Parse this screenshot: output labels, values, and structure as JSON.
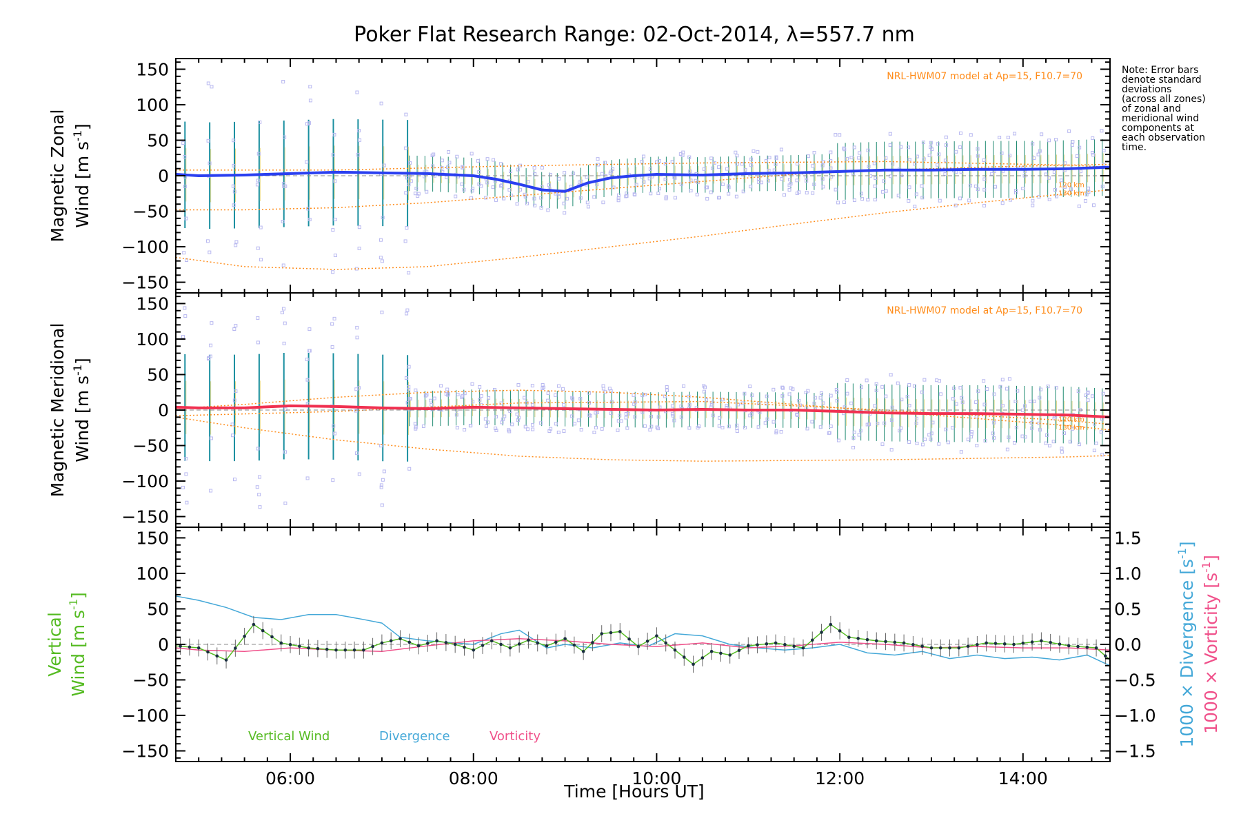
{
  "chart_data": {
    "type": "line",
    "title": "Poker Flat Research Range: 02-Oct-2014, λ=557.7 nm",
    "xlabel": "Time [Hours UT]",
    "xlim": [
      4.75,
      14.95
    ],
    "x_ticks": [
      "06:00",
      "08:00",
      "10:00",
      "12:00",
      "14:00"
    ],
    "note": [
      "Note: Error bars",
      "denote standard",
      "deviations",
      "(across all zones)",
      "of zonal and",
      "meridional wind",
      "components at",
      "each observation",
      "time."
    ],
    "colors": {
      "zonal": "#2a3ff0",
      "zonal_light": "#4a90e0",
      "meridional": "#f03050",
      "model": "#ff8c1a",
      "scatter": "#b8b8f0",
      "vertical": "#55bb22",
      "divergence": "#44a8d8",
      "vorticity": "#f0508a",
      "errorbar": "#8899cc"
    },
    "panels": [
      {
        "ylabel_line1": "Magnetic Zonal",
        "ylabel_line2": "Wind",
        "ylabel_unit": "[m s",
        "ylabel_exp": "-1",
        "ylabel_close": "]",
        "ylim": [
          -165,
          165
        ],
        "y_ticks": [
          "150",
          "100",
          "50",
          "0",
          "−50",
          "−100",
          "−150"
        ],
        "model_label": "NRL-HWM07 model at Ap=15, F10.7=70",
        "alt_labels": [
          "120 km",
          "130 km"
        ],
        "series": {
          "x": [
            4.75,
            5.0,
            5.5,
            6.0,
            6.5,
            7.0,
            7.5,
            8.0,
            8.25,
            8.5,
            8.75,
            9.0,
            9.25,
            9.5,
            9.75,
            10.0,
            10.5,
            11.0,
            11.5,
            12.0,
            12.5,
            13.0,
            13.5,
            14.0,
            14.5,
            14.95
          ],
          "values": [
            2,
            0,
            1,
            3,
            5,
            4,
            3,
            0,
            -5,
            -12,
            -20,
            -22,
            -10,
            -3,
            0,
            2,
            1,
            3,
            4,
            6,
            8,
            8,
            9,
            9,
            10,
            12
          ]
        },
        "model_curves": [
          {
            "x": [
              4.75,
              5.5,
              6.5,
              7.5,
              8.5,
              9.5,
              10.5,
              11.5,
              12.5,
              13.5,
              14.5,
              14.95
            ],
            "values": [
              -48,
              -48,
              -45,
              -38,
              -28,
              -18,
              -8,
              2,
              8,
              12,
              15,
              16
            ]
          },
          {
            "x": [
              4.75,
              5.5,
              6.5,
              7.5,
              8.5,
              9.5,
              10.5,
              11.5,
              12.5,
              13.5,
              14.5,
              14.95
            ],
            "values": [
              -115,
              -128,
              -132,
              -128,
              -115,
              -100,
              -85,
              -68,
              -52,
              -38,
              -25,
              -20
            ]
          },
          {
            "x": [
              4.75,
              6.5,
              8.5,
              10.5,
              12.5,
              14.5,
              14.95
            ],
            "values": [
              8,
              8,
              14,
              18,
              20,
              15,
              12
            ]
          }
        ]
      },
      {
        "ylabel_line1": "Magnetic Meridional",
        "ylabel_line2": "Wind",
        "ylabel_unit": "[m s",
        "ylabel_exp": "-1",
        "ylabel_close": "]",
        "ylim": [
          -165,
          165
        ],
        "y_ticks": [
          "150",
          "100",
          "50",
          "0",
          "−50",
          "−100",
          "−150"
        ],
        "model_label": "NRL-HWM07 model at Ap=15, F10.7=70",
        "alt_labels": [
          "120 km",
          "130 km"
        ],
        "series": {
          "x": [
            4.75,
            5.0,
            5.5,
            6.0,
            6.5,
            7.0,
            7.5,
            8.0,
            8.5,
            9.0,
            9.5,
            10.0,
            10.5,
            11.0,
            11.5,
            12.0,
            12.5,
            13.0,
            13.5,
            14.0,
            14.5,
            14.95
          ],
          "values": [
            4,
            3,
            3,
            6,
            5,
            3,
            2,
            4,
            3,
            2,
            1,
            0,
            1,
            0,
            0,
            -2,
            -4,
            -5,
            -5,
            -6,
            -7,
            -10
          ]
        },
        "model_curves": [
          {
            "x": [
              4.75,
              5.5,
              6.5,
              7.5,
              8.5,
              9.5,
              10.5,
              11.5,
              12.5,
              13.5,
              14.5,
              14.95
            ],
            "values": [
              -10,
              -25,
              -42,
              -55,
              -65,
              -70,
              -72,
              -71,
              -70,
              -68,
              -66,
              -64
            ]
          },
          {
            "x": [
              4.75,
              5.5,
              6.5,
              7.5,
              8.5,
              9.5,
              10.5,
              11.5,
              12.5,
              13.5,
              14.5,
              14.95
            ],
            "values": [
              2,
              8,
              18,
              25,
              28,
              25,
              18,
              8,
              -2,
              -12,
              -22,
              -28
            ]
          },
          {
            "x": [
              4.75,
              6.5,
              8.5,
              10.5,
              12.5,
              14.5,
              14.95
            ],
            "values": [
              -8,
              -2,
              10,
              12,
              0,
              -15,
              -20
            ]
          }
        ]
      },
      {
        "ylabel_line1": "Vertical",
        "ylabel_line2": "Wind",
        "ylabel_unit": "[m s",
        "ylabel_exp": "-1",
        "ylabel_close": "]",
        "ylim": [
          -165,
          165
        ],
        "y_ticks": [
          "150",
          "100",
          "50",
          "0",
          "−50",
          "−100",
          "−150"
        ],
        "y2lim": [
          -1.65,
          1.65
        ],
        "y2_ticks": [
          "1.5",
          "1.0",
          "0.5",
          "0.0",
          "−0.5",
          "−1.0",
          "−1.5"
        ],
        "y2label_div_prefix": "1000 × Divergence",
        "y2label_vor_prefix": "1000 × Vorticity",
        "y2label_unit": "[s",
        "y2label_exp": "-1",
        "y2label_close": "]",
        "legend": [
          "Vertical Wind",
          "Divergence",
          "Vorticity"
        ],
        "vertical_wind": {
          "x": [
            4.75,
            5.0,
            5.3,
            5.6,
            5.9,
            6.2,
            6.5,
            6.8,
            7.0,
            7.2,
            7.4,
            7.6,
            7.8,
            8.0,
            8.2,
            8.4,
            8.6,
            8.8,
            9.0,
            9.2,
            9.4,
            9.6,
            9.8,
            10.0,
            10.2,
            10.4,
            10.6,
            10.8,
            11.0,
            11.3,
            11.6,
            11.9,
            12.1,
            12.4,
            12.7,
            13.0,
            13.3,
            13.6,
            13.9,
            14.2,
            14.5,
            14.8,
            14.95
          ],
          "values": [
            -2,
            -5,
            -22,
            28,
            2,
            -5,
            -8,
            -8,
            2,
            8,
            -2,
            5,
            0,
            -8,
            5,
            -5,
            6,
            -2,
            8,
            -10,
            15,
            18,
            -3,
            12,
            -8,
            -28,
            -10,
            -15,
            -2,
            2,
            -5,
            28,
            10,
            5,
            2,
            -5,
            -5,
            2,
            0,
            5,
            -2,
            -5,
            -22
          ]
        },
        "divergence": {
          "x": [
            4.75,
            5.0,
            5.3,
            5.6,
            5.9,
            6.2,
            6.5,
            6.8,
            7.0,
            7.2,
            7.5,
            7.8,
            8.0,
            8.3,
            8.5,
            8.8,
            9.0,
            9.3,
            9.6,
            9.9,
            10.2,
            10.5,
            10.8,
            11.1,
            11.4,
            11.7,
            12.0,
            12.3,
            12.6,
            12.9,
            13.2,
            13.5,
            13.8,
            14.1,
            14.4,
            14.7,
            14.95
          ],
          "values": [
            0.68,
            0.62,
            0.52,
            0.38,
            0.35,
            0.42,
            0.42,
            0.35,
            0.3,
            0.1,
            0.05,
            0.02,
            0.0,
            0.15,
            0.2,
            -0.05,
            0.0,
            -0.05,
            0.02,
            -0.03,
            0.15,
            0.12,
            0.0,
            -0.05,
            -0.08,
            -0.05,
            0.0,
            -0.12,
            -0.15,
            -0.1,
            -0.2,
            -0.15,
            -0.2,
            -0.18,
            -0.22,
            -0.15,
            -0.3
          ]
        },
        "vorticity": {
          "x": [
            4.75,
            5.0,
            5.5,
            6.0,
            6.5,
            7.0,
            7.5,
            8.0,
            8.5,
            9.0,
            9.5,
            10.0,
            10.5,
            11.0,
            11.5,
            12.0,
            12.5,
            13.0,
            13.5,
            14.0,
            14.5,
            14.95
          ],
          "values": [
            -0.05,
            -0.08,
            -0.1,
            -0.05,
            -0.08,
            -0.1,
            -0.02,
            0.05,
            0.08,
            0.05,
            0.0,
            -0.03,
            0.02,
            -0.05,
            -0.02,
            0.03,
            0.0,
            -0.05,
            -0.03,
            -0.05,
            -0.05,
            -0.08
          ]
        }
      }
    ]
  }
}
